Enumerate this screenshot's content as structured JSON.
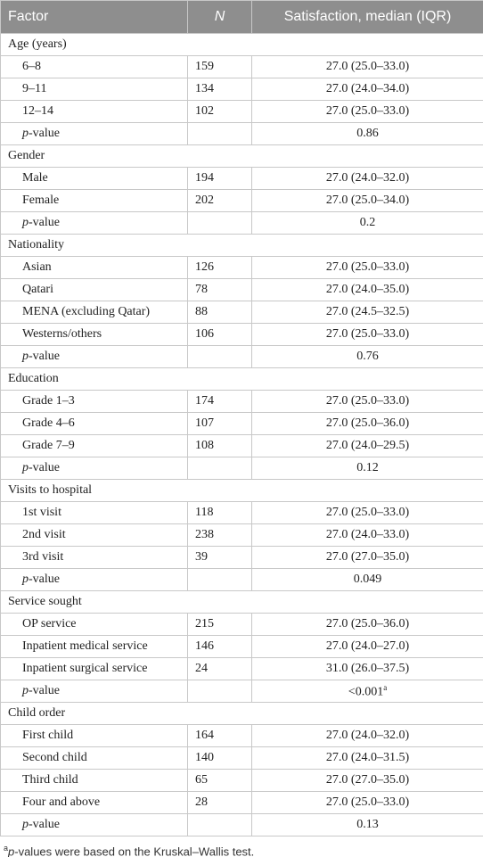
{
  "header": [
    "Factor",
    "N",
    "Satisfaction, median (IQR)"
  ],
  "p_value_label": {
    "italic": "p",
    "text": "-value"
  },
  "groups": [
    {
      "title": "Age (years)",
      "rows": [
        [
          "6–8",
          159,
          "27.0 (25.0–33.0)"
        ],
        [
          "9–11",
          134,
          "27.0 (24.0–34.0)"
        ],
        [
          "12–14",
          102,
          "27.0 (25.0–33.0)"
        ]
      ],
      "p_value": "0.86"
    },
    {
      "title": "Gender",
      "rows": [
        [
          "Male",
          194,
          "27.0 (24.0–32.0)"
        ],
        [
          "Female",
          202,
          "27.0 (25.0–34.0)"
        ]
      ],
      "p_value": "0.2"
    },
    {
      "title": "Nationality",
      "rows": [
        [
          "Asian",
          126,
          "27.0 (25.0–33.0)"
        ],
        [
          "Qatari",
          78,
          "27.0 (24.0–35.0)"
        ],
        [
          "MENA (excluding Qatar)",
          88,
          "27.0 (24.5–32.5)"
        ],
        [
          "Westerns/others",
          106,
          "27.0 (25.0–33.0)"
        ]
      ],
      "p_value": "0.76"
    },
    {
      "title": "Education",
      "rows": [
        [
          "Grade 1–3",
          174,
          "27.0 (25.0–33.0)"
        ],
        [
          "Grade 4–6",
          107,
          "27.0 (25.0–36.0)"
        ],
        [
          "Grade 7–9",
          108,
          "27.0 (24.0–29.5)"
        ]
      ],
      "p_value": "0.12"
    },
    {
      "title": "Visits to hospital",
      "rows": [
        [
          "1st visit",
          118,
          "27.0 (25.0–33.0)"
        ],
        [
          "2nd visit",
          238,
          "27.0 (24.0–33.0)"
        ],
        [
          "3rd visit",
          39,
          "27.0 (27.0–35.0)"
        ]
      ],
      "p_value": "0.049"
    },
    {
      "title": "Service sought",
      "rows": [
        [
          "OP service",
          215,
          "27.0 (25.0–36.0)"
        ],
        [
          "Inpatient medical service",
          146,
          "27.0 (24.0–27.0)"
        ],
        [
          "Inpatient surgical service",
          24,
          "31.0 (26.0–37.5)"
        ]
      ],
      "p_value": "<0.001",
      "p_value_note": "a"
    },
    {
      "title": "Child order",
      "rows": [
        [
          "First child",
          164,
          "27.0 (24.0–32.0)"
        ],
        [
          "Second child",
          140,
          "27.0 (24.0–31.5)"
        ],
        [
          "Third child",
          65,
          "27.0 (27.0–35.0)"
        ],
        [
          "Four and above",
          28,
          "27.0 (25.0–33.0)"
        ]
      ],
      "p_value": "0.13"
    }
  ],
  "footnote": {
    "mark": "a",
    "italic": "p",
    "text": "-values were based on the Kruskal–Wallis test."
  }
}
